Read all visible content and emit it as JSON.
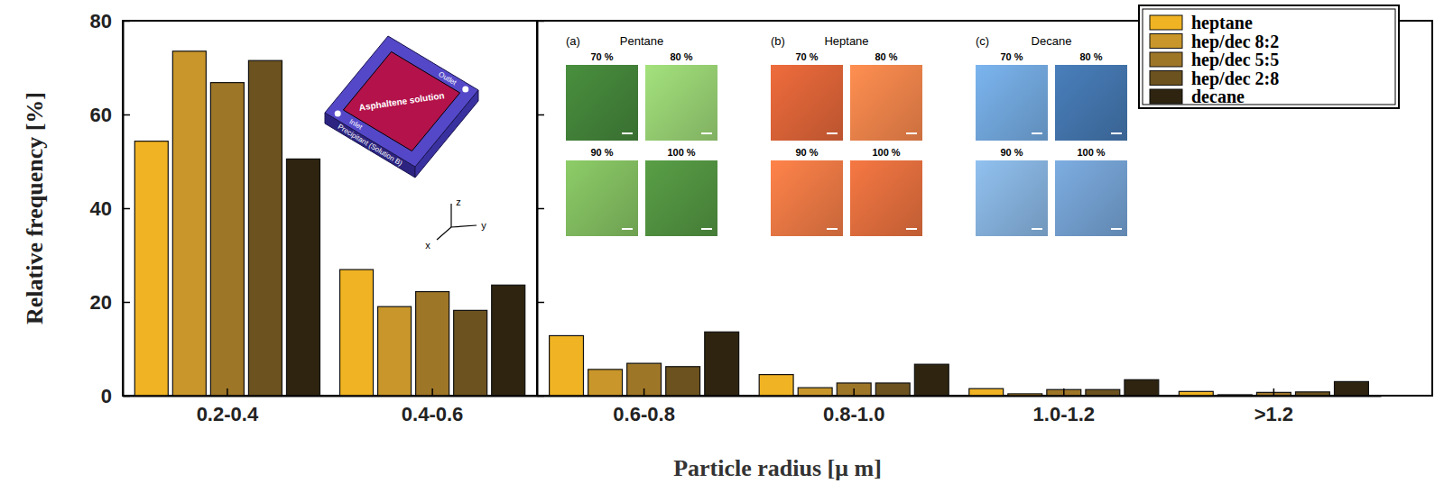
{
  "chart_data": {
    "type": "bar",
    "xlabel": "Particle radius [μ m]",
    "ylabel": "Relative frequency [%]",
    "categories": [
      "0.2-0.4",
      "0.4-0.6",
      "0.6-0.8",
      "0.8-1.0",
      "1.0-1.2",
      ">1.2"
    ],
    "series": [
      {
        "name": "heptane",
        "color": "#f0b323",
        "values": [
          54.3,
          26.9,
          12.8,
          4.5,
          1.5,
          0.9
        ]
      },
      {
        "name": "hep/dec 8:2",
        "color": "#c8962a",
        "values": [
          73.5,
          19.0,
          5.6,
          1.7,
          0.4,
          0.2
        ]
      },
      {
        "name": "hep/dec 5:5",
        "color": "#9e7628",
        "values": [
          66.8,
          22.2,
          6.9,
          2.7,
          1.3,
          0.7
        ]
      },
      {
        "name": "hep/dec 2:8",
        "color": "#6b521f",
        "values": [
          71.5,
          18.2,
          6.2,
          2.7,
          1.3,
          0.8
        ]
      },
      {
        "name": "decane",
        "color": "#2e2410",
        "values": [
          50.5,
          23.6,
          13.6,
          6.7,
          3.4,
          3.0
        ]
      }
    ],
    "ylim": [
      0,
      80
    ],
    "yticks": [
      0,
      20,
      40,
      60,
      80
    ],
    "legend": "upper right",
    "annotations": {
      "schematic": {
        "center": "Asphaltene solution",
        "surround": "Precipitant (Solution B)",
        "inlet": "Inlet",
        "outlet": "Outlet",
        "axes": [
          "x",
          "y",
          "z"
        ]
      },
      "panels": [
        {
          "letter": "(a)",
          "title": "Pentane",
          "images": [
            "70 %",
            "80 %",
            "90 %",
            "100 %"
          ]
        },
        {
          "letter": "(b)",
          "title": "Heptane",
          "images": [
            "70 %",
            "80 %",
            "90 %",
            "100 %"
          ]
        },
        {
          "letter": "(c)",
          "title": "Decane",
          "images": [
            "70 %",
            "80 %",
            "90 %",
            "100 %"
          ]
        }
      ]
    }
  }
}
